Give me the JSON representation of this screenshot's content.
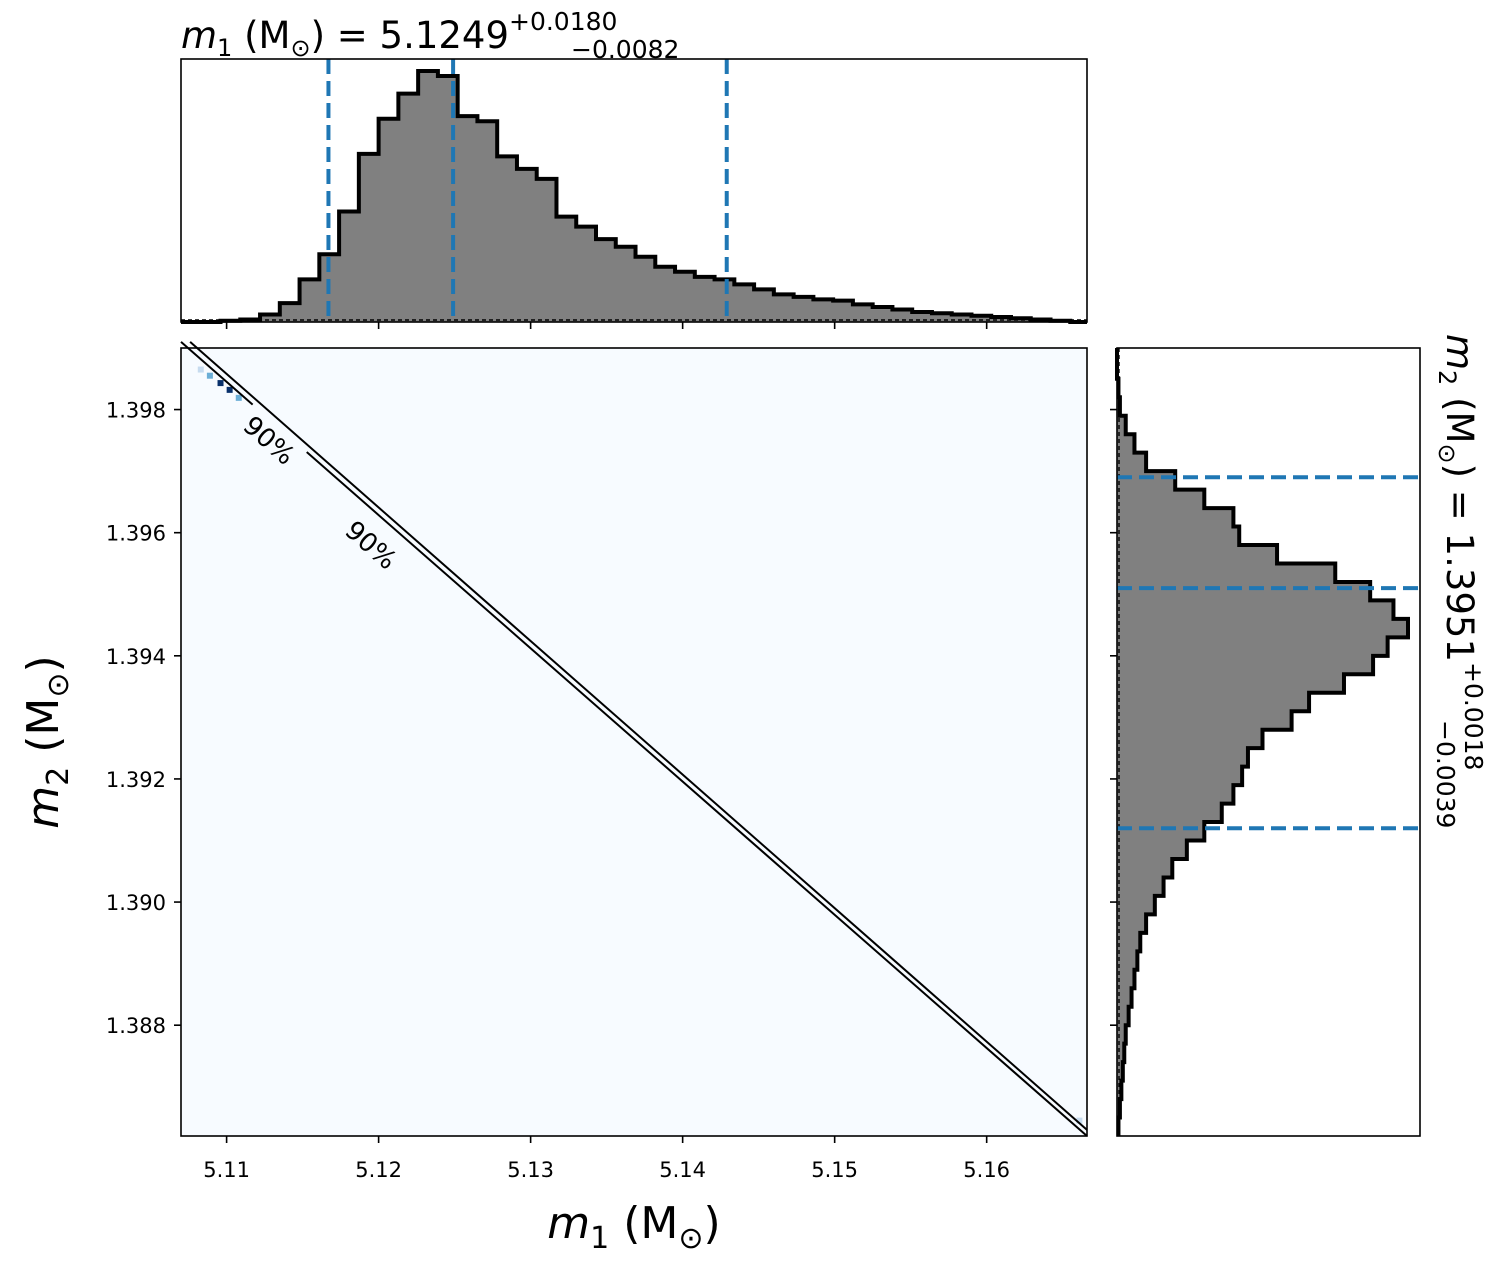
{
  "chart_data": [
    {
      "panel": "m1-marginal",
      "type": "histogram",
      "title": {
        "main": "m",
        "sub": "1",
        "unit": " (M",
        "sun": "⊙",
        "close": ") = 5.1249",
        "plus": "+0.0180",
        "minus": "−0.0082"
      },
      "xlim": [
        5.107,
        5.1666
      ],
      "bin_edges": [
        5.107,
        5.1083,
        5.1096,
        5.1109,
        5.1122,
        5.1135,
        5.1148,
        5.1161,
        5.1174,
        5.1187,
        5.12,
        5.1213,
        5.1226,
        5.1239,
        5.1252,
        5.1265,
        5.1278,
        5.1291,
        5.1304,
        5.1317,
        5.133,
        5.1343,
        5.1356,
        5.1369,
        5.1382,
        5.1395,
        5.1408,
        5.1421,
        5.1434,
        5.1447,
        5.146,
        5.1473,
        5.1486,
        5.1499,
        5.1512,
        5.1525,
        5.1538,
        5.1551,
        5.1564,
        5.1577,
        5.159,
        5.1603,
        5.1616,
        5.1629,
        5.1642,
        5.1655,
        5.1666
      ],
      "counts": [
        0,
        0,
        0.005,
        0.01,
        0.03,
        0.075,
        0.17,
        0.27,
        0.44,
        0.67,
        0.81,
        0.91,
        1.0,
        0.98,
        0.82,
        0.8,
        0.66,
        0.61,
        0.57,
        0.42,
        0.38,
        0.33,
        0.3,
        0.26,
        0.22,
        0.2,
        0.18,
        0.17,
        0.15,
        0.13,
        0.11,
        0.1,
        0.09,
        0.085,
        0.07,
        0.06,
        0.05,
        0.04,
        0.035,
        0.03,
        0.025,
        0.02,
        0.015,
        0.01,
        0.005,
        0
      ],
      "quantile_lines": [
        5.1167,
        5.1249,
        5.1429
      ]
    },
    {
      "panel": "joint",
      "type": "heatmap",
      "xlabel": {
        "main": "m",
        "sub": "1",
        "unit": " (M",
        "sun": "⊙",
        "close": ")"
      },
      "ylabel": {
        "main": "m",
        "sub": "2",
        "unit": " (M",
        "sun": "⊙",
        "close": ")"
      },
      "xlim": [
        5.107,
        5.1666
      ],
      "ylim": [
        1.3862,
        1.399
      ],
      "xticks": [
        5.11,
        5.12,
        5.13,
        5.14,
        5.15,
        5.16
      ],
      "yticks": [
        1.388,
        1.39,
        1.392,
        1.394,
        1.396,
        1.398
      ],
      "xtick_labels": [
        "5.11",
        "5.12",
        "5.13",
        "5.14",
        "5.15",
        "5.16"
      ],
      "ytick_labels": [
        "1.388",
        "1.390",
        "1.392",
        "1.394",
        "1.396",
        "1.398"
      ],
      "contours": [
        {
          "level": "90%",
          "points": [
            [
              5.107,
              1.3991
            ],
            [
              5.1666,
              1.3862
            ]
          ]
        },
        {
          "level": "90%",
          "points": [
            [
              5.1076,
              1.3991
            ],
            [
              5.1666,
              1.3863
            ]
          ]
        }
      ],
      "contour_labels": [
        {
          "text": "90%",
          "x": 5.1128,
          "y": 1.3975
        },
        {
          "text": "90%",
          "x": 5.1195,
          "y": 1.3958
        }
      ],
      "hot_cells": [
        {
          "x": 5.1083,
          "y": 1.39865,
          "level": 0.3
        },
        {
          "x": 5.1089,
          "y": 1.39855,
          "level": 0.5
        },
        {
          "x": 5.1096,
          "y": 1.39843,
          "level": 0.95
        },
        {
          "x": 5.1102,
          "y": 1.39832,
          "level": 1.0
        },
        {
          "x": 5.1108,
          "y": 1.39819,
          "level": 0.6
        },
        {
          "x": 5.1661,
          "y": 1.38645,
          "level": 0.35
        }
      ],
      "background_color": "#f7fbff",
      "cmap": [
        "#f7fbff",
        "#c6dbef",
        "#6baed6",
        "#2171b5",
        "#08306b"
      ]
    },
    {
      "panel": "m2-marginal",
      "type": "histogram",
      "orientation": "horizontal",
      "title": {
        "main": "m",
        "sub": "2",
        "unit": " (M",
        "sun": "⊙",
        "close": ") = 1.3951",
        "plus": "+0.0018",
        "minus": "−0.0039"
      },
      "ylim": [
        1.3862,
        1.399
      ],
      "bin_edges": [
        1.3862,
        1.3865,
        1.3868,
        1.3871,
        1.3874,
        1.3877,
        1.388,
        1.3883,
        1.3886,
        1.3889,
        1.3892,
        1.3895,
        1.3898,
        1.3901,
        1.3904,
        1.3907,
        1.391,
        1.3913,
        1.3916,
        1.3919,
        1.3922,
        1.3925,
        1.3928,
        1.3931,
        1.3934,
        1.3937,
        1.394,
        1.3943,
        1.3946,
        1.3949,
        1.3952,
        1.3955,
        1.3958,
        1.3961,
        1.3964,
        1.3967,
        1.397,
        1.3973,
        1.3976,
        1.3979,
        1.3982,
        1.3985,
        1.3988,
        1.399
      ],
      "counts": [
        0.005,
        0.01,
        0.015,
        0.02,
        0.025,
        0.03,
        0.04,
        0.05,
        0.06,
        0.07,
        0.08,
        0.1,
        0.13,
        0.16,
        0.19,
        0.24,
        0.3,
        0.36,
        0.4,
        0.43,
        0.45,
        0.5,
        0.6,
        0.66,
        0.78,
        0.88,
        0.93,
        1.0,
        0.95,
        0.87,
        0.75,
        0.55,
        0.42,
        0.4,
        0.3,
        0.2,
        0.1,
        0.06,
        0.03,
        0.01,
        0.005,
        0,
        0
      ],
      "quantile_lines": [
        1.3912,
        1.3951,
        1.3969
      ]
    }
  ],
  "colors": {
    "hist_fill": "#808080",
    "hist_edge": "#000000",
    "quantile_line": "#1f77b4",
    "contour": "#000000"
  }
}
